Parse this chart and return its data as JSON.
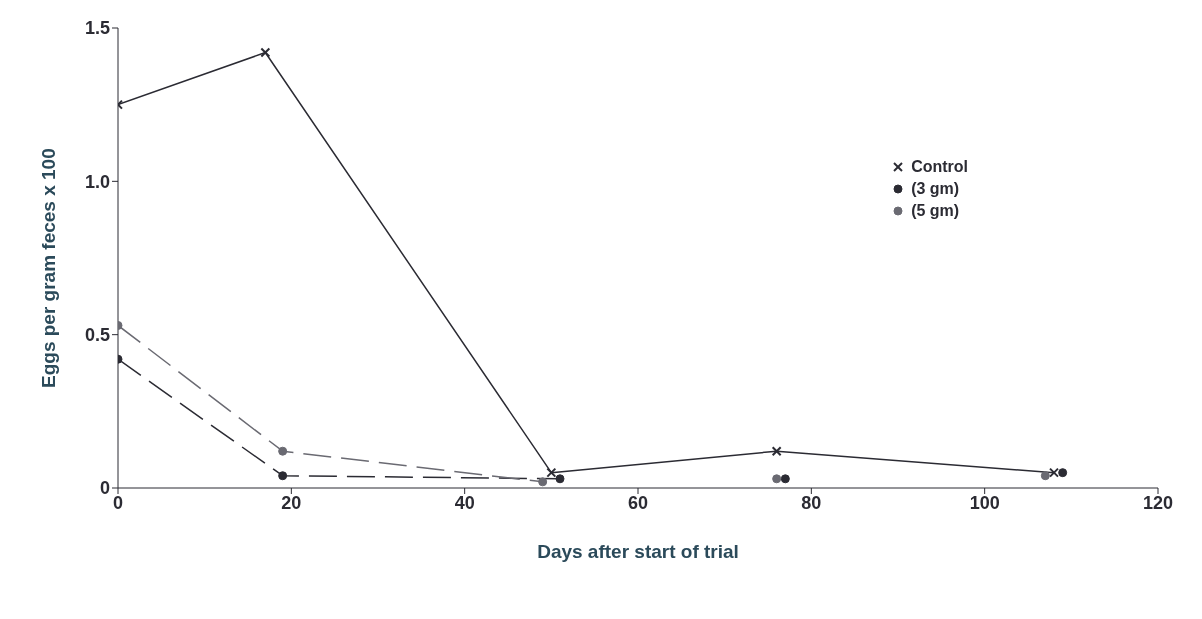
{
  "chart_data": {
    "type": "line",
    "xlabel": "Days after start of trial",
    "ylabel": "Eggs per gram feces x 100",
    "xlim": [
      0,
      120
    ],
    "xticks": [
      0,
      20,
      40,
      60,
      80,
      100,
      120
    ],
    "ylim": [
      0,
      1.5
    ],
    "yticks": [
      0,
      {
        "value": 0.5,
        "label": "0.5"
      },
      {
        "value": 1,
        "label": "1.0"
      },
      {
        "value": 1.5,
        "label": "1.5"
      }
    ],
    "grid": false,
    "legend": "top right",
    "series": [
      {
        "name": "Control",
        "color": "#2b2b33",
        "marker": "cross",
        "line_style": "solid",
        "x": [
          0,
          17,
          50,
          76,
          108
        ],
        "values": [
          1.25,
          1.42,
          0.05,
          0.12,
          0.05
        ]
      },
      {
        "name": "(3 gm)",
        "color": "#2b2b33",
        "marker": "circle",
        "line_style": "dashed",
        "x": [
          0,
          19,
          51
        ],
        "values": [
          0.42,
          0.04,
          0.03
        ]
      },
      {
        "name": "(5 gm)",
        "color": "#6a6a72",
        "marker": "circle",
        "line_style": "dashed",
        "x": [
          0,
          19,
          49
        ],
        "values": [
          0.53,
          0.12,
          0.02
        ]
      },
      {
        "type": "scatter",
        "color": "#2b2b33",
        "marker": "circle",
        "x": [
          77,
          109
        ],
        "values": [
          0.03,
          0.05
        ]
      },
      {
        "type": "scatter",
        "color": "#6a6a72",
        "marker": "circle",
        "x": [
          76,
          107
        ],
        "values": [
          0.03,
          0.04
        ]
      }
    ]
  }
}
